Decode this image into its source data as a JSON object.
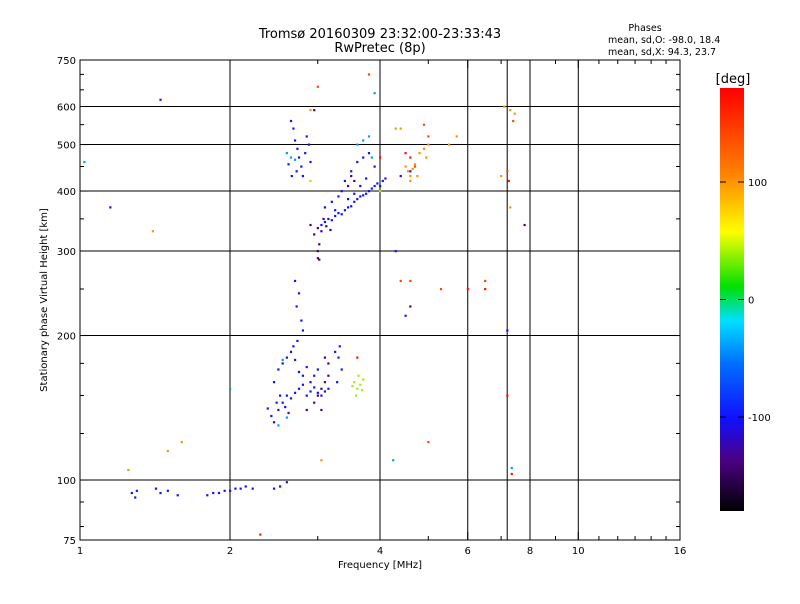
{
  "chart_data": {
    "type": "scatter",
    "title": "Tromsø 20160309 23:32:00-23:33:43",
    "subtitle": "RwPretec (8p)",
    "phases_block": {
      "heading": "Phases",
      "line1": "mean, sd,O: -98.0, 18.4",
      "line2": "mean, sd,X:  94.3, 23.7"
    },
    "xlabel": "Frequency [MHz]",
    "ylabel": "Stationary phase Virtual Height [km]",
    "x_scale": "log",
    "y_scale": "log",
    "xlim": [
      1,
      16
    ],
    "ylim": [
      75,
      750
    ],
    "x_ticks": [
      1,
      2,
      4,
      6,
      8,
      10,
      16
    ],
    "x_tick_labels": [
      "1",
      "2",
      "4",
      "6",
      "8",
      "10",
      "16"
    ],
    "x_grid": [
      2,
      4,
      6,
      7.2,
      8,
      10
    ],
    "y_ticks": [
      75,
      100,
      200,
      300,
      400,
      500,
      600,
      750
    ],
    "y_tick_labels": [
      "75",
      "100",
      "200",
      "300",
      "400",
      "500",
      "600",
      "750"
    ],
    "y_grid": [
      100,
      200,
      300,
      400,
      500,
      600
    ],
    "colorbar": {
      "unit_label": "[deg]",
      "range": [
        -180,
        180
      ],
      "ticks": [
        -100,
        0,
        100
      ],
      "tick_labels": [
        "-100",
        "0",
        "100"
      ]
    },
    "series": [
      {
        "phase_deg": -100,
        "points": [
          [
            1.27,
            94
          ],
          [
            1.29,
            92
          ],
          [
            1.3,
            95
          ],
          [
            1.42,
            96
          ],
          [
            1.45,
            94
          ],
          [
            1.5,
            95
          ],
          [
            1.57,
            93
          ],
          [
            1.8,
            93
          ],
          [
            1.85,
            94
          ],
          [
            1.9,
            94
          ],
          [
            1.95,
            95
          ],
          [
            2.0,
            95
          ],
          [
            2.05,
            96
          ],
          [
            2.1,
            96
          ],
          [
            2.15,
            97
          ],
          [
            2.22,
            96
          ],
          [
            2.45,
            96
          ],
          [
            2.52,
            97
          ],
          [
            2.6,
            99
          ],
          [
            2.65,
            560
          ],
          [
            2.68,
            540
          ],
          [
            2.7,
            510
          ],
          [
            2.73,
            490
          ],
          [
            2.75,
            470
          ],
          [
            2.78,
            450
          ],
          [
            2.8,
            430
          ],
          [
            2.83,
            480
          ],
          [
            2.85,
            520
          ],
          [
            2.88,
            500
          ],
          [
            2.9,
            460
          ],
          [
            2.72,
            440
          ],
          [
            2.66,
            430
          ],
          [
            2.62,
            455
          ],
          [
            3.05,
            340
          ],
          [
            3.1,
            345
          ],
          [
            3.15,
            350
          ],
          [
            3.2,
            348
          ],
          [
            3.25,
            355
          ],
          [
            3.3,
            360
          ],
          [
            3.35,
            358
          ],
          [
            3.4,
            365
          ],
          [
            3.45,
            370
          ],
          [
            3.5,
            372
          ],
          [
            3.55,
            380
          ],
          [
            3.6,
            385
          ],
          [
            3.65,
            390
          ],
          [
            3.7,
            392
          ],
          [
            3.75,
            395
          ],
          [
            3.8,
            400
          ],
          [
            3.85,
            405
          ],
          [
            3.9,
            410
          ],
          [
            3.95,
            415
          ],
          [
            4.0,
            410
          ],
          [
            4.05,
            420
          ],
          [
            4.1,
            425
          ],
          [
            3.2,
            380
          ],
          [
            3.3,
            390
          ],
          [
            3.4,
            420
          ],
          [
            3.5,
            440
          ],
          [
            3.6,
            460
          ],
          [
            3.7,
            470
          ],
          [
            3.8,
            480
          ],
          [
            3.9,
            450
          ],
          [
            3.35,
            400
          ],
          [
            3.45,
            385
          ],
          [
            3.55,
            395
          ],
          [
            3.65,
            410
          ],
          [
            3.75,
            425
          ],
          [
            3.1,
            370
          ],
          [
            3.25,
            365
          ],
          [
            2.38,
            141
          ],
          [
            2.42,
            136
          ],
          [
            2.45,
            132
          ],
          [
            2.5,
            140
          ],
          [
            2.55,
            145
          ],
          [
            2.6,
            150
          ],
          [
            2.65,
            148
          ],
          [
            2.7,
            152
          ],
          [
            2.75,
            155
          ],
          [
            2.8,
            158
          ],
          [
            2.85,
            150
          ],
          [
            2.9,
            153
          ],
          [
            2.95,
            156
          ],
          [
            3.0,
            152
          ],
          [
            3.05,
            150
          ],
          [
            3.1,
            153
          ],
          [
            3.15,
            155
          ],
          [
            2.45,
            160
          ],
          [
            2.5,
            170
          ],
          [
            2.55,
            175
          ],
          [
            2.6,
            180
          ],
          [
            2.65,
            185
          ],
          [
            2.7,
            178
          ],
          [
            2.75,
            168
          ],
          [
            2.8,
            165
          ],
          [
            2.85,
            172
          ],
          [
            2.9,
            160
          ],
          [
            2.95,
            165
          ],
          [
            3.0,
            170
          ],
          [
            2.52,
            150
          ],
          [
            2.58,
            142
          ],
          [
            2.62,
            138
          ],
          [
            2.48,
            145
          ],
          [
            2.7,
            260
          ],
          [
            2.75,
            245
          ],
          [
            2.72,
            230
          ],
          [
            2.78,
            215
          ],
          [
            2.8,
            205
          ],
          [
            2.73,
            195
          ],
          [
            2.68,
            190
          ],
          [
            3.25,
            185
          ],
          [
            3.3,
            180
          ],
          [
            3.35,
            170
          ],
          [
            3.28,
            160
          ],
          [
            3.32,
            190
          ],
          [
            4.5,
            220
          ],
          [
            7.2,
            205
          ],
          [
            4.3,
            300
          ],
          [
            4.4,
            430
          ],
          [
            4.6,
            440
          ],
          [
            1.15,
            370
          ],
          [
            1.45,
            620
          ],
          [
            2.95,
            590
          ]
        ]
      },
      {
        "phase_deg": -140,
        "points": [
          [
            2.9,
            340
          ],
          [
            3.0,
            335
          ],
          [
            3.05,
            330
          ],
          [
            3.12,
            338
          ],
          [
            3.18,
            332
          ],
          [
            2.95,
            325
          ],
          [
            3.02,
            310
          ],
          [
            3.08,
            350
          ],
          [
            3.0,
            150
          ],
          [
            3.05,
            155
          ],
          [
            3.1,
            160
          ],
          [
            3.15,
            165
          ],
          [
            3.05,
            140
          ],
          [
            2.95,
            145
          ],
          [
            2.85,
            140
          ],
          [
            3.1,
            180
          ],
          [
            3.15,
            175
          ],
          [
            3.5,
            430
          ],
          [
            3.55,
            420
          ],
          [
            3.45,
            410
          ],
          [
            4.6,
            230
          ],
          [
            7.8,
            340
          ],
          [
            3.0,
            300
          ],
          [
            3.0,
            290
          ],
          [
            3.02,
            288
          ]
        ]
      },
      {
        "phase_deg": -40,
        "points": [
          [
            2.6,
            480
          ],
          [
            2.65,
            470
          ],
          [
            2.7,
            465
          ],
          [
            3.6,
            500
          ],
          [
            3.7,
            510
          ],
          [
            3.8,
            520
          ],
          [
            2.5,
            130
          ],
          [
            2.6,
            135
          ],
          [
            4.25,
            110
          ],
          [
            7.35,
            106
          ],
          [
            3.9,
            640
          ],
          [
            3.85,
            470
          ],
          [
            1.02,
            460
          ],
          [
            2.0,
            155
          ],
          [
            2.55,
            178
          ]
        ]
      },
      {
        "phase_deg": 40,
        "points": [
          [
            3.55,
            160
          ],
          [
            3.6,
            155
          ],
          [
            3.65,
            158
          ],
          [
            3.7,
            162
          ],
          [
            3.62,
            165
          ],
          [
            3.58,
            150
          ],
          [
            3.52,
            157
          ],
          [
            3.68,
            154
          ],
          [
            4.0,
            400
          ],
          [
            2.9,
            420
          ]
        ]
      },
      {
        "phase_deg": 100,
        "points": [
          [
            4.4,
            540
          ],
          [
            4.5,
            450
          ],
          [
            4.55,
            440
          ],
          [
            4.6,
            430
          ],
          [
            4.65,
            445
          ],
          [
            4.7,
            455
          ],
          [
            4.8,
            480
          ],
          [
            4.9,
            490
          ],
          [
            5.0,
            500
          ],
          [
            4.75,
            430
          ],
          [
            4.6,
            420
          ],
          [
            4.95,
            470
          ],
          [
            7.1,
            600
          ],
          [
            7.3,
            590
          ],
          [
            7.45,
            580
          ],
          [
            7.3,
            370
          ],
          [
            7.0,
            430
          ],
          [
            1.25,
            105
          ],
          [
            1.6,
            120
          ],
          [
            2.9,
            590
          ],
          [
            5.7,
            520
          ],
          [
            5.5,
            500
          ],
          [
            1.4,
            330
          ],
          [
            1.5,
            115
          ],
          [
            4.3,
            540
          ],
          [
            3.05,
            110
          ]
        ]
      },
      {
        "phase_deg": 140,
        "points": [
          [
            4.9,
            550
          ],
          [
            5.0,
            520
          ],
          [
            4.6,
            260
          ],
          [
            3.0,
            660
          ],
          [
            3.8,
            700
          ],
          [
            4.4,
            260
          ],
          [
            5.3,
            250
          ],
          [
            6.5,
            260
          ],
          [
            7.2,
            440
          ],
          [
            7.4,
            560
          ],
          [
            4.7,
            450
          ],
          [
            5.0,
            120
          ]
        ]
      },
      {
        "phase_deg": 170,
        "points": [
          [
            4.5,
            480
          ],
          [
            4.6,
            470
          ],
          [
            7.2,
            150
          ],
          [
            7.35,
            103
          ],
          [
            6.0,
            250
          ],
          [
            6.5,
            250
          ],
          [
            2.3,
            77
          ],
          [
            3.6,
            180
          ],
          [
            4.0,
            470
          ],
          [
            7.25,
            420
          ]
        ]
      }
    ]
  }
}
